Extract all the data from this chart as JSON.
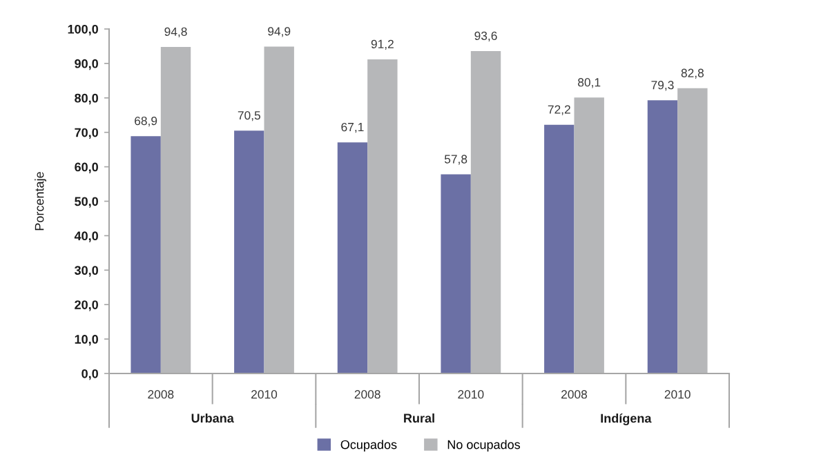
{
  "chart_data": {
    "type": "bar",
    "ylabel": "Porcentaje",
    "categories": [
      "2008",
      "2010",
      "2008",
      "2010",
      "2008",
      "2010"
    ],
    "annotations": [
      "Urbana",
      "Rural",
      "Indígena"
    ],
    "series": [
      {
        "name": "Ocupados",
        "color": "#6b70a5",
        "values": [
          68.9,
          70.5,
          67.1,
          57.8,
          72.2,
          79.3
        ],
        "value_labels": [
          "68,9",
          "70,5",
          "67,1",
          "57,8",
          "72,2",
          "79,3"
        ]
      },
      {
        "name": "No ocupados",
        "color": "#b6b7b9",
        "values": [
          94.8,
          94.9,
          91.2,
          93.6,
          80.1,
          82.8
        ],
        "value_labels": [
          "94,8",
          "94,9",
          "91,2",
          "93,6",
          "80,1",
          "82,8"
        ]
      }
    ],
    "ylim": [
      0,
      100
    ],
    "yticks": [
      {
        "value": 0,
        "label": "0,0"
      },
      {
        "value": 10,
        "label": "10,0"
      },
      {
        "value": 20,
        "label": "20,0"
      },
      {
        "value": 30,
        "label": "30,0"
      },
      {
        "value": 40,
        "label": "40,0"
      },
      {
        "value": 50,
        "label": "50,0"
      },
      {
        "value": 60,
        "label": "60,0"
      },
      {
        "value": 70,
        "label": "70,0"
      },
      {
        "value": 80,
        "label": "80,0"
      },
      {
        "value": 90,
        "label": "90,0"
      },
      {
        "value": 100,
        "label": "100,0"
      }
    ],
    "legend": "bottom"
  }
}
